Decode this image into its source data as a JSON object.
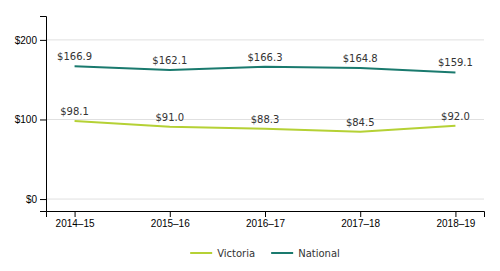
{
  "chart_data": {
    "type": "line",
    "categories": [
      "2014–15",
      "2015–16",
      "2016–17",
      "2017–18",
      "2018–19"
    ],
    "series": [
      {
        "name": "Victoria",
        "color": "#b5d135",
        "values": [
          98.1,
          91.0,
          88.3,
          84.5,
          92.0
        ],
        "value_labels": [
          "$98.1",
          "$91.0",
          "$88.3",
          "$84.5",
          "$92.0"
        ]
      },
      {
        "name": "National",
        "color": "#1a7a6e",
        "values": [
          166.9,
          162.1,
          166.3,
          164.8,
          159.1
        ],
        "value_labels": [
          "$166.9",
          "$162.1",
          "$166.3",
          "$164.8",
          "$159.1"
        ]
      }
    ],
    "ylim": [
      -15,
      230
    ],
    "yticks": [
      {
        "value": 0,
        "label": "$0"
      },
      {
        "value": 100,
        "label": "$100"
      },
      {
        "value": 200,
        "label": "$200"
      }
    ],
    "grid": true,
    "data_labels": true,
    "legend": "bottom"
  }
}
